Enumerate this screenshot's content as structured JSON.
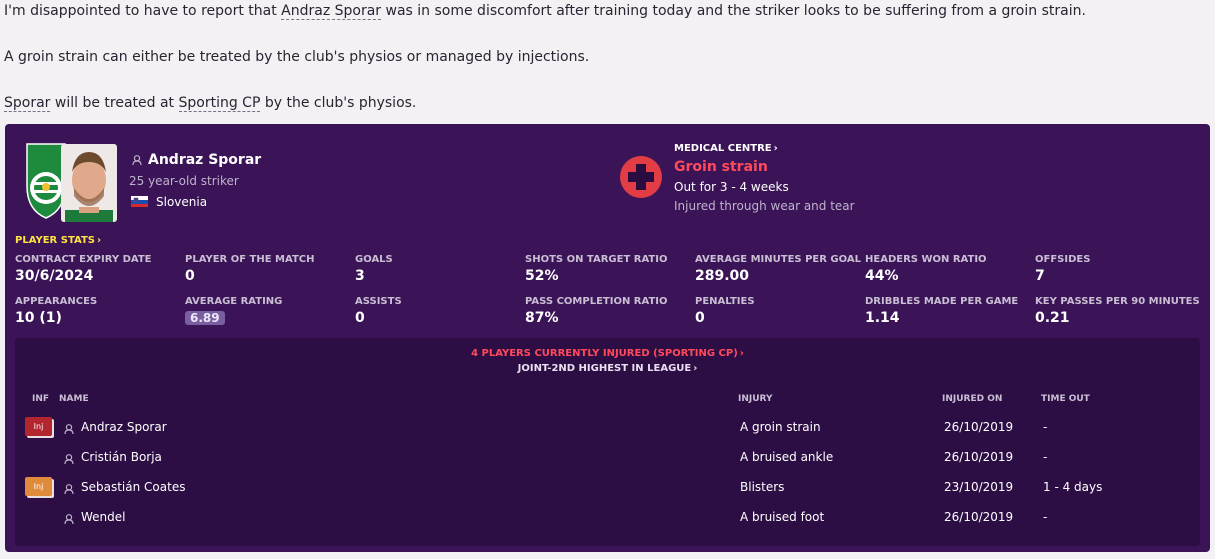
{
  "news": {
    "p1_before": "I'm disappointed to have to report that ",
    "p1_link": "Andraz Sporar",
    "p1_after": " was in some discomfort after training today and the striker looks to be suffering from a groin strain.",
    "p2": "A groin strain can either be treated by the club's physios or managed by injections.",
    "p3_link1": "Sporar",
    "p3_mid": " will be treated at ",
    "p3_link2": "Sporting CP",
    "p3_after": " by the club's physios."
  },
  "player": {
    "name": "Andraz Sporar",
    "subtitle": "25 year-old striker",
    "nationality": "Slovenia",
    "club_badge_text": "SCP SPORTING PORTUGAL"
  },
  "medical": {
    "header": "MEDICAL CENTRE",
    "injury": "Groin strain",
    "out_for": "Out for 3 - 4 weeks",
    "cause": "Injured through wear and tear"
  },
  "stats": {
    "header": "PLAYER STATS",
    "items": [
      {
        "label": "CONTRACT EXPIRY DATE",
        "value": "30/6/2024"
      },
      {
        "label": "PLAYER OF THE MATCH",
        "value": "0"
      },
      {
        "label": "GOALS",
        "value": "3"
      },
      {
        "label": "SHOTS ON TARGET RATIO",
        "value": "52%"
      },
      {
        "label": "AVERAGE MINUTES PER GOAL",
        "value": "289.00"
      },
      {
        "label": "HEADERS WON RATIO",
        "value": "44%"
      },
      {
        "label": "OFFSIDES",
        "value": "7"
      },
      {
        "label": "APPEARANCES",
        "value": "10 (1)"
      },
      {
        "label": "AVERAGE RATING",
        "value": "6.89"
      },
      {
        "label": "ASSISTS",
        "value": "0"
      },
      {
        "label": "PASS COMPLETION RATIO",
        "value": "87%"
      },
      {
        "label": "PENALTIES",
        "value": "0"
      },
      {
        "label": "DRIBBLES MADE PER GAME",
        "value": "1.14"
      },
      {
        "label": "KEY PASSES PER 90 MINUTES",
        "value": "0.21"
      }
    ]
  },
  "injuries": {
    "headline": "4 PLAYERS CURRENTLY INJURED (SPORTING CP)",
    "subline": "JOINT-2ND HIGHEST IN LEAGUE",
    "columns": {
      "inf": "INF",
      "name": "NAME",
      "injury": "INJURY",
      "injured_on": "INJURED ON",
      "time_out": "TIME OUT"
    },
    "rows": [
      {
        "inf": "Inj",
        "inf_color": "#b3262e",
        "name": "Andraz Sporar",
        "injury": "A groin strain",
        "injured_on": "26/10/2019",
        "time_out": "-"
      },
      {
        "inf": "",
        "inf_color": "",
        "name": "Cristián Borja",
        "injury": "A bruised ankle",
        "injured_on": "26/10/2019",
        "time_out": "-"
      },
      {
        "inf": "Inj",
        "inf_color": "#e08a3c",
        "name": "Sebastián Coates",
        "injury": "Blisters",
        "injured_on": "23/10/2019",
        "time_out": "1 - 4 days"
      },
      {
        "inf": "",
        "inf_color": "",
        "name": "Wendel",
        "injury": "A bruised foot",
        "injured_on": "26/10/2019",
        "time_out": "-"
      }
    ]
  }
}
